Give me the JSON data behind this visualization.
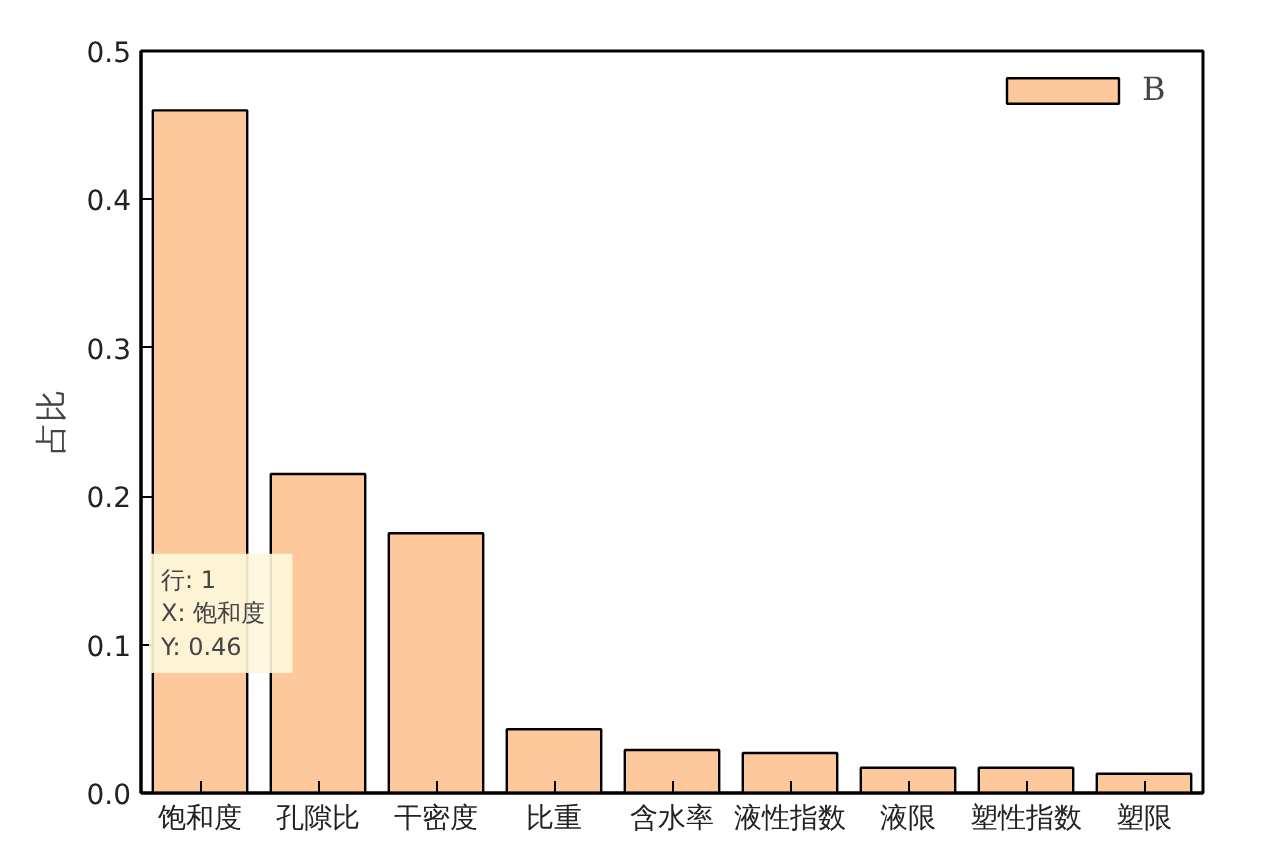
{
  "chart_data": {
    "type": "bar",
    "ylabel": "占比",
    "categories": [
      "饱和度",
      "孔隙比",
      "干密度",
      "比重",
      "含水率",
      "液性指数",
      "液限",
      "塑性指数",
      "塑限"
    ],
    "series": [
      {
        "name": "B",
        "color": "#fdc89b",
        "values": [
          0.46,
          0.215,
          0.175,
          0.043,
          0.029,
          0.027,
          0.017,
          0.017,
          0.013
        ]
      }
    ],
    "ylim": [
      0,
      0.5
    ],
    "yticks": [
      {
        "value": 0,
        "label": "0.0"
      },
      {
        "value": 0.1,
        "label": "0.1"
      },
      {
        "value": 0.2,
        "label": "0.2"
      },
      {
        "value": 0.3,
        "label": "0.3"
      },
      {
        "value": 0.4,
        "label": "0.4"
      },
      {
        "value": 0.5,
        "label": "0.5"
      }
    ],
    "annotations": [
      "行: 1\nX:   饱和度\nY:   0.46"
    ],
    "legend": "top right",
    "grid": false
  }
}
